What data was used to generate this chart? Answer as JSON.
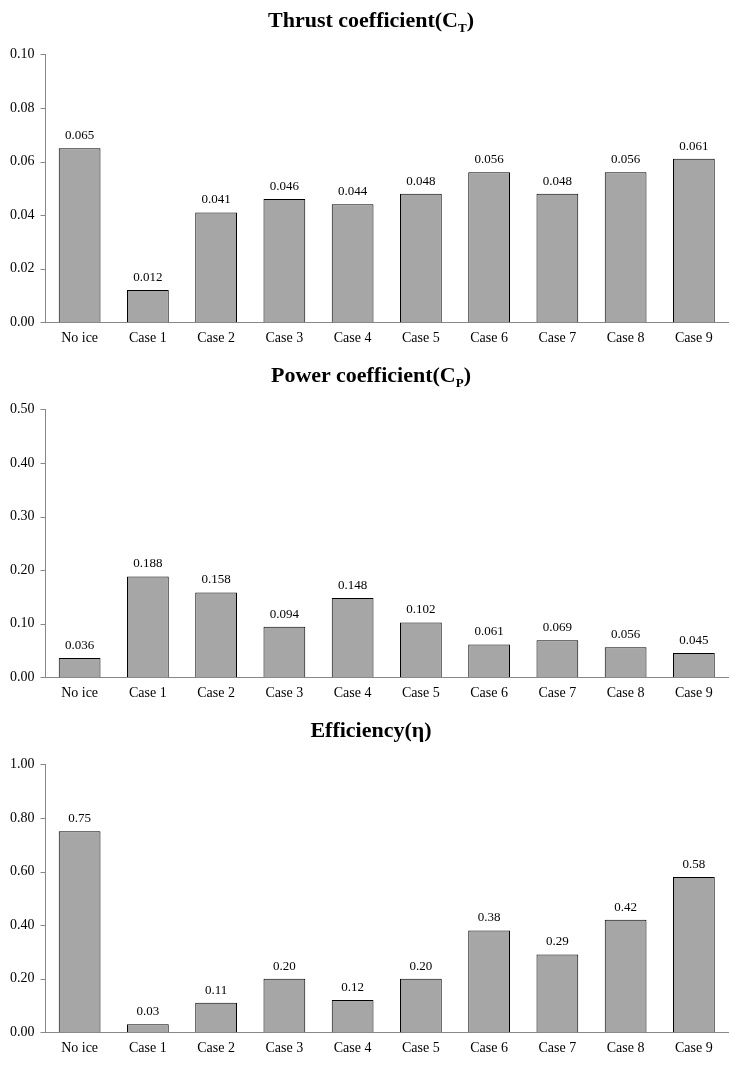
{
  "chart_data": [
    {
      "type": "bar",
      "title": "Thrust coefficient(C$_{T}$)",
      "categories": [
        "No ice",
        "Case 1",
        "Case 2",
        "Case 3",
        "Case 4",
        "Case 5",
        "Case 6",
        "Case 7",
        "Case 8",
        "Case 9"
      ],
      "values": [
        0.065,
        0.012,
        0.041,
        0.046,
        0.044,
        0.048,
        0.056,
        0.048,
        0.056,
        0.061
      ],
      "color": "#a6a6a6",
      "ylim": [
        0,
        0.1
      ],
      "yticks": [
        {
          "value": 0,
          "label": "0.00"
        },
        {
          "value": 0.02,
          "label": "0.02"
        },
        {
          "value": 0.04,
          "label": "0.04"
        },
        {
          "value": 0.06,
          "label": "0.06"
        },
        {
          "value": 0.08,
          "label": "0.08"
        },
        {
          "value": 0.1,
          "label": "0.10"
        }
      ],
      "data_labels": true
    },
    {
      "type": "bar",
      "title": "Power coefficient(C$_{P}$)",
      "categories": [
        "No ice",
        "Case 1",
        "Case 2",
        "Case 3",
        "Case 4",
        "Case 5",
        "Case 6",
        "Case 7",
        "Case 8",
        "Case 9"
      ],
      "values": [
        0.036,
        0.188,
        0.158,
        0.094,
        0.148,
        0.102,
        0.061,
        0.069,
        0.056,
        0.045
      ],
      "color": "#a6a6a6",
      "ylim": [
        0,
        0.5
      ],
      "yticks": [
        {
          "value": 0,
          "label": "0.00"
        },
        {
          "value": 0.1,
          "label": "0.10"
        },
        {
          "value": 0.2,
          "label": "0.20"
        },
        {
          "value": 0.3,
          "label": "0.30"
        },
        {
          "value": 0.4,
          "label": "0.40"
        },
        {
          "value": 0.5,
          "label": "0.50"
        }
      ],
      "data_labels": true
    },
    {
      "type": "bar",
      "title": "Efficiency(η)",
      "categories": [
        "No ice",
        "Case 1",
        "Case 2",
        "Case 3",
        "Case 4",
        "Case 5",
        "Case 6",
        "Case 7",
        "Case 8",
        "Case 9"
      ],
      "values": [
        0.75,
        0.03,
        0.11,
        0.2,
        0.12,
        0.2,
        0.38,
        0.29,
        0.42,
        0.58
      ],
      "value_labels": [
        "0.75",
        "0.03",
        "0.11",
        "0.20",
        "0.12",
        "0.20",
        "0.38",
        "0.29",
        "0.42",
        "0.58"
      ],
      "color": "#a6a6a6",
      "ylim": [
        0,
        1
      ],
      "yticks": [
        {
          "value": 0,
          "label": "0.00"
        },
        {
          "value": 0.2,
          "label": "0.20"
        },
        {
          "value": 0.4,
          "label": "0.40"
        },
        {
          "value": 0.6,
          "label": "0.60"
        },
        {
          "value": 0.8,
          "label": "0.80"
        },
        {
          "value": 1,
          "label": "1.00"
        }
      ]
    }
  ]
}
